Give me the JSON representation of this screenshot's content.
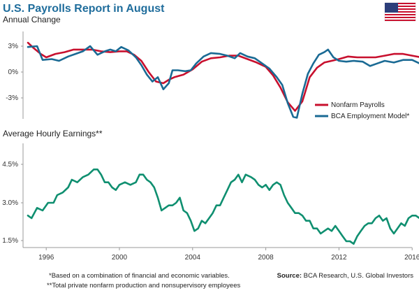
{
  "header": {
    "title": "U.S. Payrolls Report in August",
    "flag_icon": "us-flag-icon"
  },
  "chart_data": [
    {
      "type": "line",
      "subtitle": "Annual Change",
      "y_ticks": [
        "3%",
        "0%",
        "-3%"
      ],
      "ylim": [
        -5.8,
        4.6
      ],
      "xlim": [
        1995.0,
        2016.9
      ],
      "grid": false,
      "legend_position": "right",
      "series": [
        {
          "name": "Nonfarm Payrolls",
          "color": "#c8102e",
          "points": [
            [
              1995.0,
              3.4
            ],
            [
              1995.3,
              2.8
            ],
            [
              1995.7,
              2.1
            ],
            [
              1996.0,
              1.7
            ],
            [
              1996.5,
              2.1
            ],
            [
              1997.0,
              2.3
            ],
            [
              1997.5,
              2.6
            ],
            [
              1998.0,
              2.6
            ],
            [
              1998.5,
              2.6
            ],
            [
              1999.0,
              2.4
            ],
            [
              1999.5,
              2.3
            ],
            [
              2000.0,
              2.4
            ],
            [
              2000.4,
              2.4
            ],
            [
              2000.8,
              2.0
            ],
            [
              2001.2,
              1.3
            ],
            [
              2001.6,
              0.0
            ],
            [
              2002.0,
              -1.1
            ],
            [
              2002.4,
              -1.3
            ],
            [
              2002.7,
              -0.9
            ],
            [
              2003.0,
              -0.6
            ],
            [
              2003.5,
              -0.3
            ],
            [
              2004.0,
              0.3
            ],
            [
              2004.5,
              1.2
            ],
            [
              2005.0,
              1.6
            ],
            [
              2005.5,
              1.7
            ],
            [
              2006.0,
              1.9
            ],
            [
              2006.5,
              1.9
            ],
            [
              2007.0,
              1.5
            ],
            [
              2007.5,
              1.1
            ],
            [
              2008.0,
              0.6
            ],
            [
              2008.4,
              -0.4
            ],
            [
              2008.8,
              -1.8
            ],
            [
              2009.2,
              -3.5
            ],
            [
              2009.6,
              -4.5
            ],
            [
              2010.0,
              -3.4
            ],
            [
              2010.4,
              -0.6
            ],
            [
              2010.8,
              0.5
            ],
            [
              2011.2,
              1.1
            ],
            [
              2011.6,
              1.3
            ],
            [
              2012.0,
              1.5
            ],
            [
              2012.5,
              1.8
            ],
            [
              2013.0,
              1.7
            ],
            [
              2013.5,
              1.7
            ],
            [
              2014.0,
              1.7
            ],
            [
              2014.5,
              1.9
            ],
            [
              2015.0,
              2.1
            ],
            [
              2015.5,
              2.1
            ],
            [
              2016.0,
              1.9
            ],
            [
              2016.5,
              1.7
            ]
          ]
        },
        {
          "name": "BCA Employment Model*",
          "color": "#1a6a94",
          "points": [
            [
              1995.0,
              2.9
            ],
            [
              1995.5,
              3.0
            ],
            [
              1995.8,
              1.4
            ],
            [
              1996.3,
              1.5
            ],
            [
              1996.7,
              1.3
            ],
            [
              1997.2,
              1.8
            ],
            [
              1997.6,
              2.1
            ],
            [
              1998.0,
              2.4
            ],
            [
              1998.4,
              3.0
            ],
            [
              1998.8,
              2.0
            ],
            [
              1999.2,
              2.4
            ],
            [
              1999.5,
              2.6
            ],
            [
              1999.8,
              2.4
            ],
            [
              2000.1,
              2.9
            ],
            [
              2000.5,
              2.5
            ],
            [
              2000.9,
              1.7
            ],
            [
              2001.2,
              0.8
            ],
            [
              2001.5,
              -0.3
            ],
            [
              2001.8,
              -1.1
            ],
            [
              2002.1,
              -0.6
            ],
            [
              2002.4,
              -2.0
            ],
            [
              2002.7,
              -1.3
            ],
            [
              2002.9,
              0.2
            ],
            [
              2003.2,
              0.2
            ],
            [
              2003.6,
              0.1
            ],
            [
              2003.9,
              0.2
            ],
            [
              2004.2,
              1.0
            ],
            [
              2004.6,
              1.8
            ],
            [
              2005.0,
              2.2
            ],
            [
              2005.5,
              2.1
            ],
            [
              2005.9,
              1.9
            ],
            [
              2006.3,
              1.6
            ],
            [
              2006.6,
              2.2
            ],
            [
              2007.0,
              1.8
            ],
            [
              2007.4,
              1.6
            ],
            [
              2007.8,
              1.0
            ],
            [
              2008.2,
              0.4
            ],
            [
              2008.6,
              -0.6
            ],
            [
              2008.9,
              -1.5
            ],
            [
              2009.2,
              -3.6
            ],
            [
              2009.5,
              -5.2
            ],
            [
              2009.7,
              -5.3
            ],
            [
              2010.0,
              -2.5
            ],
            [
              2010.3,
              -0.2
            ],
            [
              2010.6,
              1.0
            ],
            [
              2010.9,
              2.0
            ],
            [
              2011.2,
              2.3
            ],
            [
              2011.4,
              2.6
            ],
            [
              2011.7,
              1.7
            ],
            [
              2012.0,
              1.3
            ],
            [
              2012.4,
              1.2
            ],
            [
              2012.8,
              1.3
            ],
            [
              2013.3,
              1.2
            ],
            [
              2013.7,
              0.7
            ],
            [
              2014.1,
              1.0
            ],
            [
              2014.5,
              1.3
            ],
            [
              2015.0,
              1.1
            ],
            [
              2015.5,
              1.4
            ],
            [
              2016.0,
              1.4
            ],
            [
              2016.4,
              1.0
            ],
            [
              2016.6,
              0.8
            ],
            [
              2016.8,
              1.2
            ]
          ]
        }
      ]
    },
    {
      "type": "line",
      "subtitle": "Average Hourly Earnings**",
      "y_ticks": [
        "4.5%",
        "3.0%",
        "1.5%"
      ],
      "ylim": [
        1.2,
        5.0
      ],
      "xlim": [
        1995.0,
        2016.9
      ],
      "x_ticks": [
        "1996",
        "2000",
        "2004",
        "2008",
        "2012",
        "2016"
      ],
      "grid": false,
      "series": [
        {
          "name": "",
          "color": "#0f8f70",
          "points": [
            [
              1995.0,
              2.5
            ],
            [
              1995.2,
              2.4
            ],
            [
              1995.5,
              2.8
            ],
            [
              1995.8,
              2.7
            ],
            [
              1996.1,
              3.0
            ],
            [
              1996.4,
              3.0
            ],
            [
              1996.6,
              3.3
            ],
            [
              1996.9,
              3.4
            ],
            [
              1997.2,
              3.6
            ],
            [
              1997.4,
              3.9
            ],
            [
              1997.7,
              3.8
            ],
            [
              1998.0,
              4.0
            ],
            [
              1998.3,
              4.1
            ],
            [
              1998.6,
              4.3
            ],
            [
              1998.8,
              4.3
            ],
            [
              1999.0,
              4.1
            ],
            [
              1999.2,
              3.8
            ],
            [
              1999.4,
              3.8
            ],
            [
              1999.6,
              3.6
            ],
            [
              1999.8,
              3.5
            ],
            [
              2000.0,
              3.7
            ],
            [
              2000.3,
              3.8
            ],
            [
              2000.6,
              3.7
            ],
            [
              2000.9,
              3.8
            ],
            [
              2001.1,
              4.1
            ],
            [
              2001.3,
              4.1
            ],
            [
              2001.5,
              3.9
            ],
            [
              2001.7,
              3.8
            ],
            [
              2001.9,
              3.6
            ],
            [
              2002.1,
              3.2
            ],
            [
              2002.3,
              2.7
            ],
            [
              2002.5,
              2.8
            ],
            [
              2002.7,
              2.9
            ],
            [
              2002.9,
              2.9
            ],
            [
              2003.1,
              3.0
            ],
            [
              2003.3,
              3.2
            ],
            [
              2003.5,
              2.7
            ],
            [
              2003.7,
              2.6
            ],
            [
              2003.9,
              2.3
            ],
            [
              2004.1,
              1.9
            ],
            [
              2004.3,
              2.0
            ],
            [
              2004.5,
              2.3
            ],
            [
              2004.7,
              2.2
            ],
            [
              2004.9,
              2.4
            ],
            [
              2005.1,
              2.6
            ],
            [
              2005.3,
              2.9
            ],
            [
              2005.5,
              2.9
            ],
            [
              2005.7,
              3.2
            ],
            [
              2005.9,
              3.5
            ],
            [
              2006.1,
              3.8
            ],
            [
              2006.3,
              3.9
            ],
            [
              2006.5,
              4.1
            ],
            [
              2006.7,
              3.8
            ],
            [
              2006.9,
              4.1
            ],
            [
              2007.2,
              4.0
            ],
            [
              2007.4,
              3.9
            ],
            [
              2007.6,
              3.7
            ],
            [
              2007.8,
              3.6
            ],
            [
              2008.0,
              3.7
            ],
            [
              2008.2,
              3.5
            ],
            [
              2008.4,
              3.7
            ],
            [
              2008.6,
              3.8
            ],
            [
              2008.8,
              3.7
            ],
            [
              2009.0,
              3.3
            ],
            [
              2009.2,
              3.0
            ],
            [
              2009.4,
              2.8
            ],
            [
              2009.6,
              2.6
            ],
            [
              2009.8,
              2.6
            ],
            [
              2010.0,
              2.5
            ],
            [
              2010.2,
              2.3
            ],
            [
              2010.4,
              2.3
            ],
            [
              2010.6,
              2.0
            ],
            [
              2010.8,
              2.0
            ],
            [
              2011.0,
              1.8
            ],
            [
              2011.2,
              1.9
            ],
            [
              2011.4,
              2.0
            ],
            [
              2011.6,
              1.9
            ],
            [
              2011.8,
              2.1
            ],
            [
              2012.0,
              1.9
            ],
            [
              2012.2,
              1.7
            ],
            [
              2012.4,
              1.5
            ],
            [
              2012.6,
              1.5
            ],
            [
              2012.8,
              1.4
            ],
            [
              2013.0,
              1.7
            ],
            [
              2013.2,
              1.9
            ],
            [
              2013.4,
              2.1
            ],
            [
              2013.6,
              2.2
            ],
            [
              2013.8,
              2.2
            ],
            [
              2014.0,
              2.4
            ],
            [
              2014.2,
              2.5
            ],
            [
              2014.4,
              2.3
            ],
            [
              2014.6,
              2.4
            ],
            [
              2014.8,
              2.0
            ],
            [
              2015.0,
              1.8
            ],
            [
              2015.2,
              2.0
            ],
            [
              2015.4,
              2.2
            ],
            [
              2015.6,
              2.1
            ],
            [
              2015.8,
              2.4
            ],
            [
              2016.0,
              2.5
            ],
            [
              2016.2,
              2.5
            ],
            [
              2016.4,
              2.4
            ],
            [
              2016.6,
              2.5
            ],
            [
              2016.8,
              2.6
            ]
          ]
        }
      ]
    }
  ],
  "footer": {
    "note1": "*Based on a combination of financial and economic variables.",
    "note2": "**Total private nonfarm production and nonsupervisory employees",
    "source_label": "Source:",
    "source_text": " BCA Research, U.S. Global Investors"
  },
  "colors": {
    "title": "#1f6d9c",
    "axis": "#999999"
  }
}
